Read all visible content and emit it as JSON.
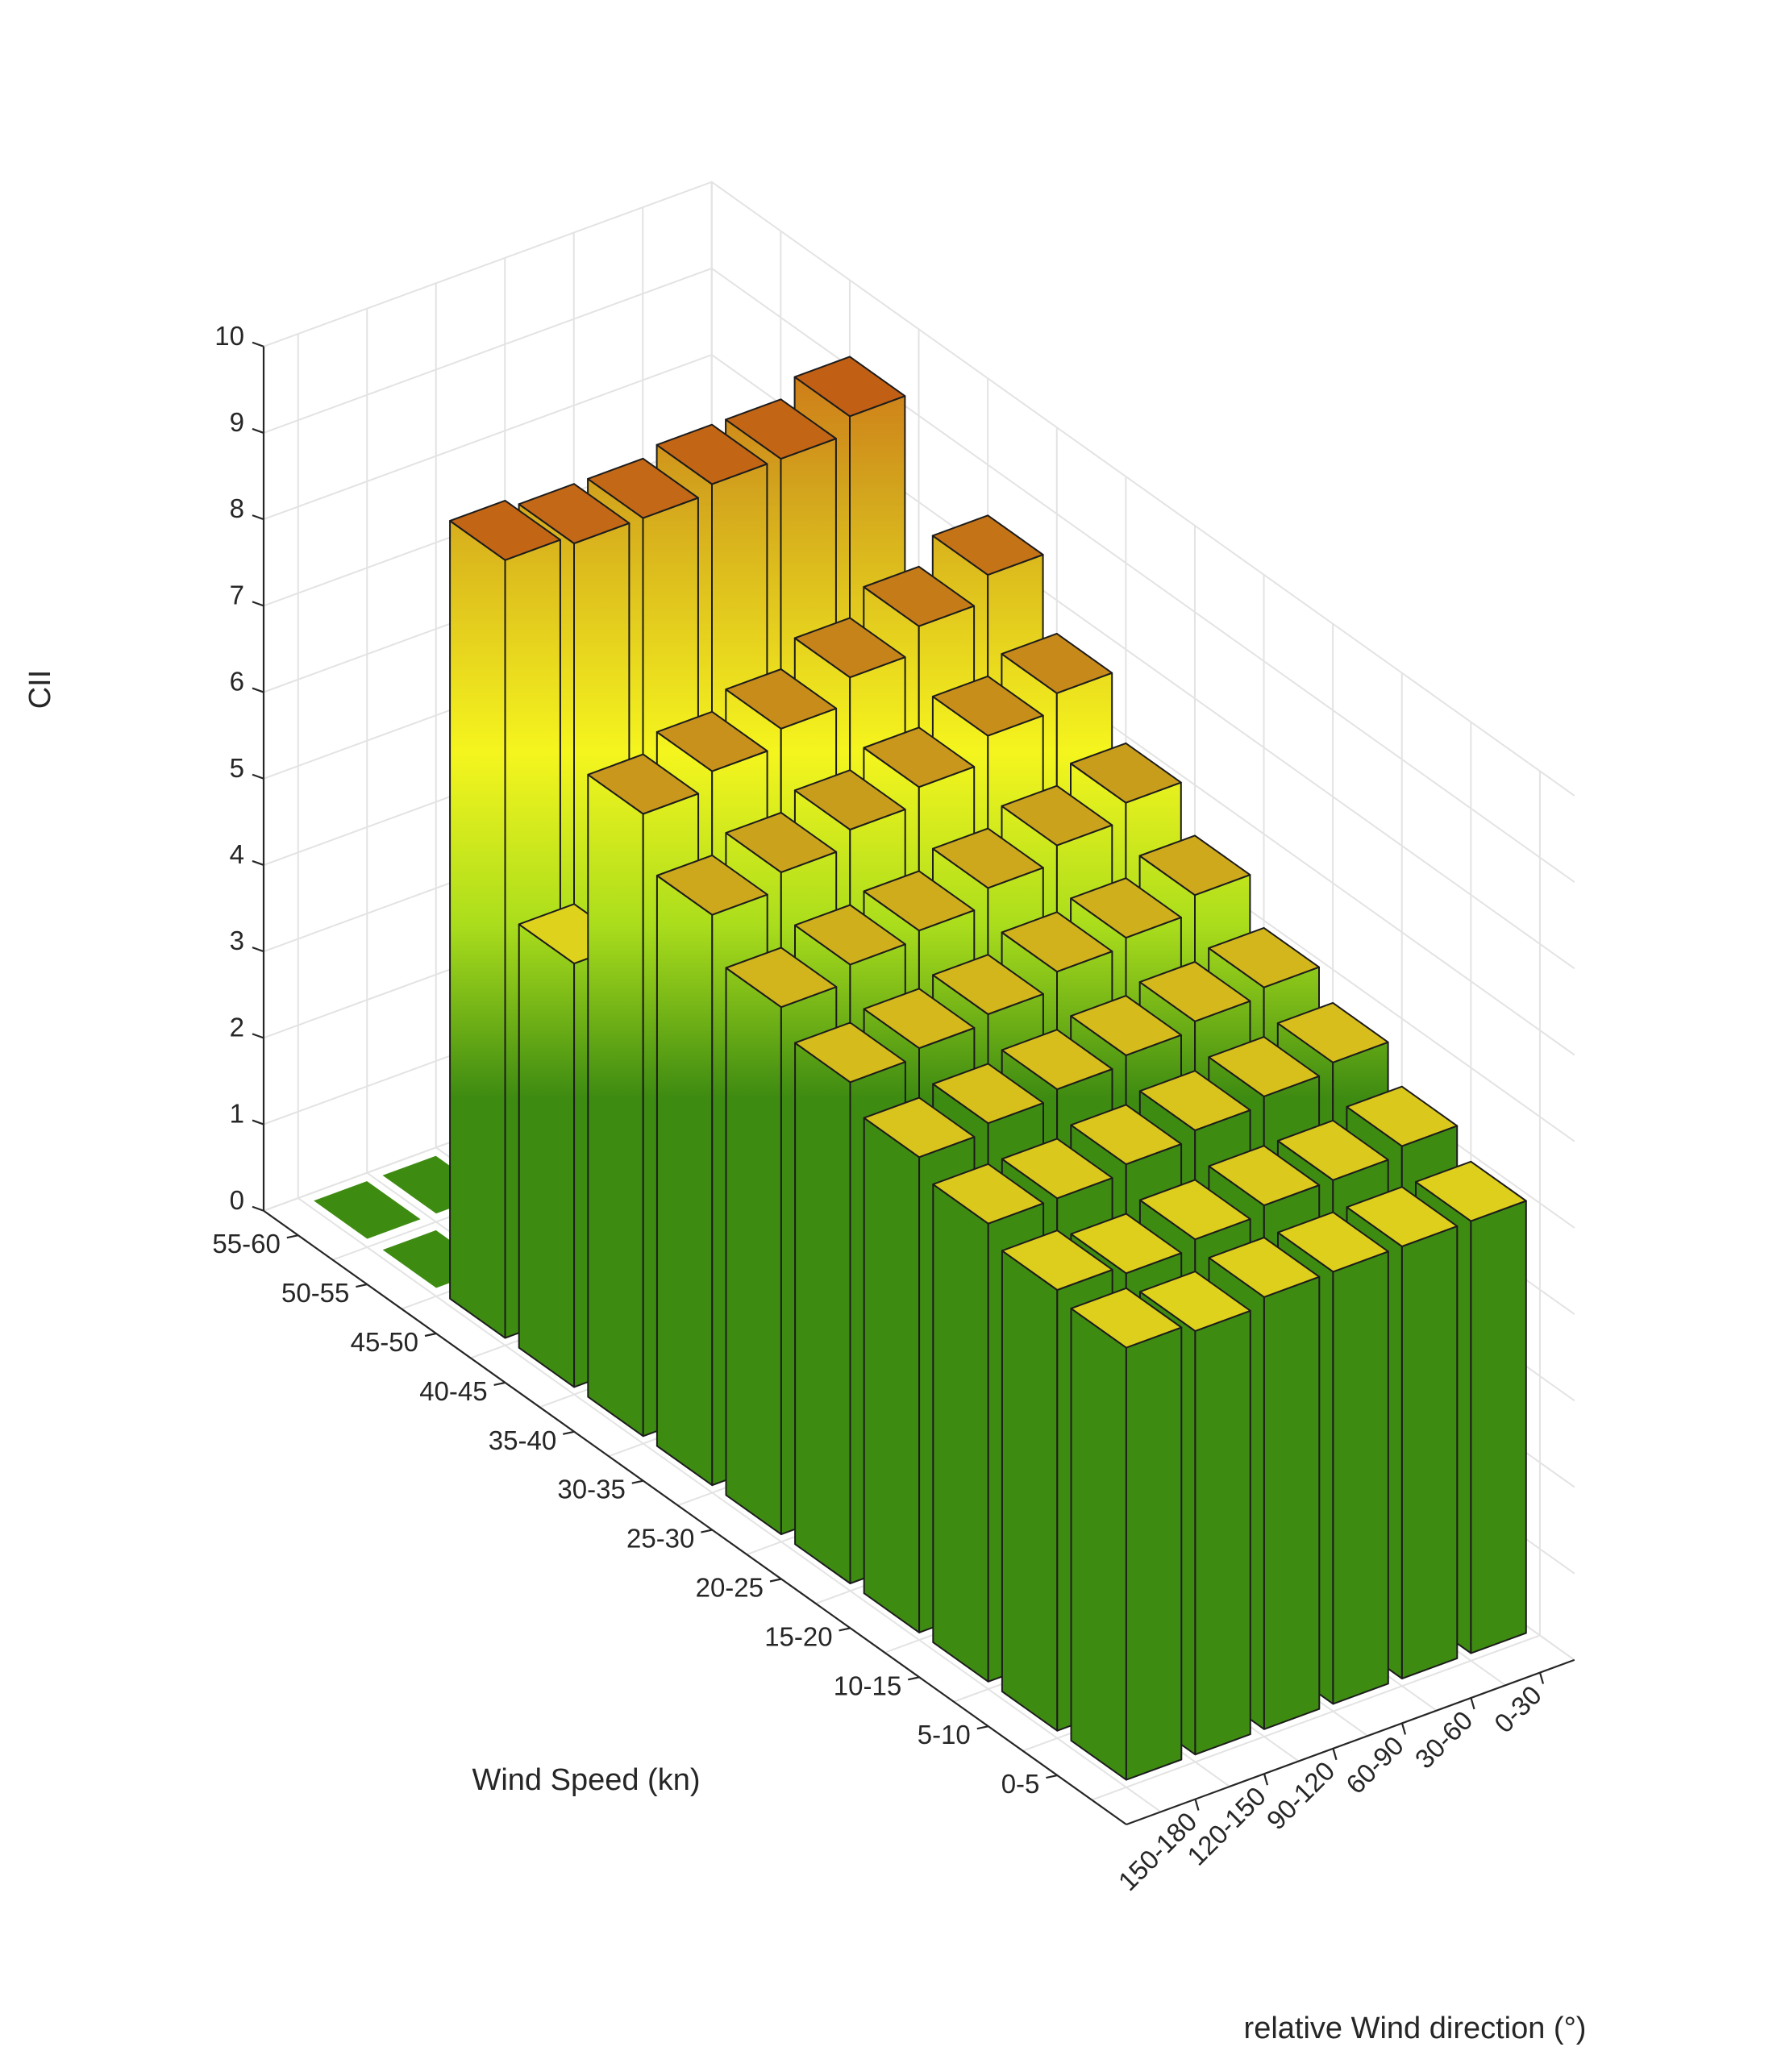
{
  "chart_data": {
    "type": "bar3d",
    "zlabel": "CII",
    "xlabel": "Wind Speed (kn)",
    "ylabel": "relative Wind direction (°)",
    "zlim": [
      0,
      10
    ],
    "z_ticks": [
      "0",
      "1",
      "2",
      "3",
      "4",
      "5",
      "6",
      "7",
      "8",
      "9",
      "10"
    ],
    "wind_speed_bins": [
      "0-5",
      "5-10",
      "10-15",
      "15-20",
      "20-25",
      "25-30",
      "30-35",
      "35-40",
      "40-45",
      "45-50",
      "50-55",
      "55-60"
    ],
    "wind_direction_bins": [
      "150-180",
      "120-150",
      "90-120",
      "60-90",
      "30-60",
      "0-30"
    ],
    "values": [
      [
        5.0,
        4.9,
        5.0,
        5.0,
        5.0,
        5.0
      ],
      [
        5.1,
        5.0,
        5.1,
        5.2,
        5.2,
        5.3
      ],
      [
        5.3,
        5.3,
        5.4,
        5.5,
        5.6,
        5.7
      ],
      [
        5.5,
        5.6,
        5.7,
        5.8,
        5.9,
        6.0
      ],
      [
        5.8,
        5.9,
        6.0,
        6.2,
        6.3,
        6.5
      ],
      [
        6.1,
        6.3,
        6.4,
        6.6,
        6.8,
        7.0
      ],
      [
        6.6,
        6.8,
        7.0,
        7.2,
        7.5,
        7.7
      ],
      [
        7.2,
        7.4,
        7.6,
        7.9,
        8.2,
        8.5
      ],
      [
        4.9,
        0,
        0,
        0,
        0,
        0
      ],
      [
        9.0,
        8.9,
        8.9,
        9.0,
        9.0,
        9.2
      ],
      [
        0,
        0,
        0,
        0,
        0,
        0
      ],
      [
        0,
        0,
        0,
        0,
        0,
        0
      ]
    ],
    "colormap": [
      "#3e8b12",
      "#aadd1c",
      "#f5f51e",
      "#d3a51d",
      "#c84c13"
    ],
    "floor_color": "#3e8b12",
    "grid": true
  }
}
